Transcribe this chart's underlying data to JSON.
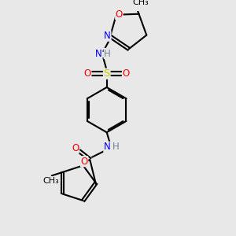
{
  "bg_color": "#e8e8e8",
  "line_color": "#000000",
  "bond_width": 1.5,
  "atom_colors": {
    "N": "#0000ff",
    "O": "#ff0000",
    "S": "#cccc00",
    "H": "#708090",
    "C": "#000000"
  },
  "font_size": 8.5,
  "figsize": [
    3.0,
    3.0
  ],
  "dpi": 100,
  "xlim": [
    0,
    10
  ],
  "ylim": [
    0,
    10
  ]
}
